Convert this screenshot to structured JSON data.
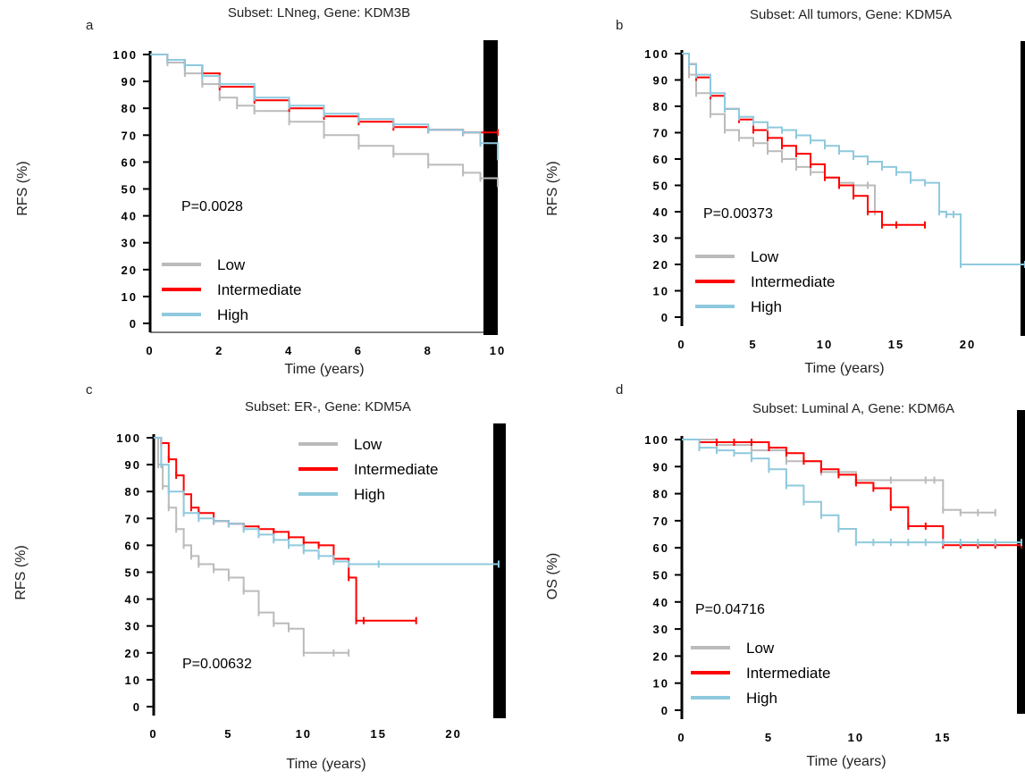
{
  "chart_data": [
    {
      "panel_letter": "a",
      "type": "line",
      "title": "Subset: LNneg, Gene: KDM3B",
      "xlabel": "Time (years)",
      "ylabel": "RFS (%)",
      "xlim": [
        0,
        10
      ],
      "ylim": [
        0,
        100
      ],
      "xticks": [
        0,
        2,
        4,
        6,
        8,
        10
      ],
      "yticks": [
        0,
        10,
        20,
        30,
        40,
        50,
        60,
        70,
        80,
        90,
        100
      ],
      "pvalue": "P=0.0028",
      "legend_position": "bottom-left",
      "series": [
        {
          "name": "Low",
          "color": "#bbbbbb",
          "x": [
            0,
            0.5,
            1,
            1.5,
            2,
            2.5,
            3,
            4,
            5,
            6,
            7,
            8,
            9,
            9.5,
            10
          ],
          "y": [
            100,
            97,
            93,
            89,
            84,
            81,
            79,
            75,
            70,
            66,
            63,
            59,
            56,
            54,
            52
          ]
        },
        {
          "name": "Intermediate",
          "color": "#ff0000",
          "x": [
            0,
            0.5,
            1,
            1.5,
            2,
            3,
            4,
            5,
            6,
            7,
            8,
            9,
            10
          ],
          "y": [
            100,
            98,
            96,
            93,
            88,
            83,
            80,
            77,
            75,
            73,
            72,
            71,
            71
          ]
        },
        {
          "name": "High",
          "color": "#8ec9dd",
          "x": [
            0,
            0.5,
            1,
            1.5,
            2,
            3,
            4,
            5,
            6,
            7,
            8,
            9,
            9.5,
            10
          ],
          "y": [
            100,
            98,
            96,
            92,
            89,
            84,
            81,
            78,
            76,
            74,
            72,
            71,
            67,
            62
          ]
        }
      ]
    },
    {
      "panel_letter": "b",
      "type": "line",
      "title": "Subset: All tumors, Gene: KDM5A",
      "xlabel": "Time (years)",
      "ylabel": "RFS (%)",
      "xlim": [
        0,
        24
      ],
      "ylim": [
        0,
        100
      ],
      "xticks": [
        0,
        5,
        10,
        15,
        20
      ],
      "yticks": [
        0,
        10,
        20,
        30,
        40,
        50,
        60,
        70,
        80,
        90,
        100
      ],
      "pvalue": "P=0.00373",
      "legend_position": "bottom-center",
      "series": [
        {
          "name": "Low",
          "color": "#bbbbbb",
          "x": [
            0,
            0.5,
            1,
            2,
            3,
            4,
            5,
            6,
            7,
            8,
            9,
            10,
            11,
            12,
            13,
            13.5,
            14
          ],
          "y": [
            100,
            92,
            85,
            77,
            71,
            68,
            66,
            63,
            60,
            57,
            55,
            53,
            51,
            50,
            50,
            40,
            37
          ]
        },
        {
          "name": "Intermediate",
          "color": "#ff0000",
          "x": [
            0,
            0.5,
            1,
            2,
            3,
            4,
            5,
            6,
            7,
            8,
            9,
            10,
            11,
            12,
            13,
            14,
            15,
            17
          ],
          "y": [
            100,
            96,
            91,
            84,
            79,
            75,
            71,
            68,
            65,
            62,
            58,
            53,
            50,
            46,
            40,
            35,
            35,
            35
          ]
        },
        {
          "name": "High",
          "color": "#8ec9dd",
          "x": [
            0,
            0.5,
            1,
            2,
            3,
            4,
            5,
            6,
            7,
            8,
            9,
            10,
            11,
            12,
            13,
            14,
            15,
            16,
            17,
            18,
            18.5,
            19,
            19.5,
            24
          ],
          "y": [
            100,
            96,
            92,
            85,
            79,
            76,
            74,
            72,
            71,
            69,
            67,
            65,
            63,
            61,
            59,
            57,
            55,
            52,
            51,
            40,
            39,
            39,
            20,
            20
          ]
        }
      ]
    },
    {
      "panel_letter": "c",
      "type": "line",
      "title": "Subset: ER-, Gene: KDM5A",
      "xlabel": "Time (years)",
      "ylabel": "RFS (%)",
      "xlim": [
        0,
        23
      ],
      "ylim": [
        0,
        100
      ],
      "xticks": [
        0,
        5,
        10,
        15,
        20
      ],
      "yticks": [
        0,
        10,
        20,
        30,
        40,
        50,
        60,
        70,
        80,
        90,
        100
      ],
      "pvalue": "P=0.00632",
      "legend_position": "top-right",
      "series": [
        {
          "name": "Low",
          "color": "#bbbbbb",
          "x": [
            0,
            0.3,
            0.6,
            1,
            1.5,
            2,
            2.5,
            3,
            4,
            5,
            6,
            7,
            8,
            9,
            10,
            12,
            13
          ],
          "y": [
            100,
            90,
            82,
            74,
            66,
            60,
            56,
            53,
            51,
            48,
            43,
            35,
            31,
            29,
            20,
            20,
            20
          ]
        },
        {
          "name": "Intermediate",
          "color": "#ff0000",
          "x": [
            0,
            0.5,
            1,
            1.5,
            2,
            2.5,
            3,
            4,
            5,
            6,
            7,
            8,
            9,
            10,
            11,
            12,
            13,
            13.5,
            14,
            17.5
          ],
          "y": [
            100,
            98,
            92,
            86,
            79,
            74,
            72,
            69,
            68,
            67,
            66,
            65,
            63,
            61,
            60,
            55,
            48,
            32,
            32,
            32
          ]
        },
        {
          "name": "High",
          "color": "#8ec9dd",
          "x": [
            0,
            0.5,
            1,
            2,
            3,
            4,
            5,
            6,
            7,
            8,
            9,
            10,
            11,
            12,
            13,
            15,
            23
          ],
          "y": [
            100,
            90,
            80,
            72,
            70,
            69,
            68,
            66,
            64,
            62,
            60,
            58,
            56,
            54,
            53,
            53,
            53
          ]
        }
      ]
    },
    {
      "panel_letter": "d",
      "type": "line",
      "title": "Subset: Luminal A, Gene: KDM6A",
      "xlabel": "Time (years)",
      "ylabel": "OS (%)",
      "xlim": [
        0,
        19.5
      ],
      "ylim": [
        0,
        100
      ],
      "xticks": [
        0,
        5,
        10,
        15
      ],
      "yticks": [
        0,
        10,
        20,
        30,
        40,
        50,
        60,
        70,
        80,
        90,
        100
      ],
      "pvalue": "P=0.04716",
      "legend_position": "bottom-left",
      "series": [
        {
          "name": "Low",
          "color": "#bbbbbb",
          "x": [
            0,
            2,
            4,
            6,
            8,
            10,
            12,
            14,
            14.5,
            15,
            16,
            17,
            18
          ],
          "y": [
            100,
            98,
            96,
            92,
            88,
            85,
            85,
            85,
            85,
            74,
            73,
            73,
            73
          ]
        },
        {
          "name": "Intermediate",
          "color": "#ff0000",
          "x": [
            0,
            1,
            2,
            3,
            4,
            5,
            6,
            7,
            8,
            9,
            10,
            11,
            12,
            13,
            14,
            15,
            16,
            17,
            18,
            19.5
          ],
          "y": [
            100,
            99,
            99,
            99,
            99,
            97,
            95,
            92,
            89,
            87,
            84,
            82,
            75,
            68,
            68,
            61,
            61,
            61,
            61,
            61
          ]
        },
        {
          "name": "High",
          "color": "#8ec9dd",
          "x": [
            0,
            1,
            2,
            3,
            4,
            5,
            6,
            7,
            8,
            9,
            10,
            11,
            12,
            13,
            14,
            15,
            16,
            17,
            18,
            19.5
          ],
          "y": [
            100,
            97,
            96,
            95,
            93,
            89,
            83,
            77,
            72,
            67,
            62,
            62,
            62,
            62,
            62,
            62,
            62,
            62,
            62,
            62
          ]
        }
      ]
    }
  ]
}
